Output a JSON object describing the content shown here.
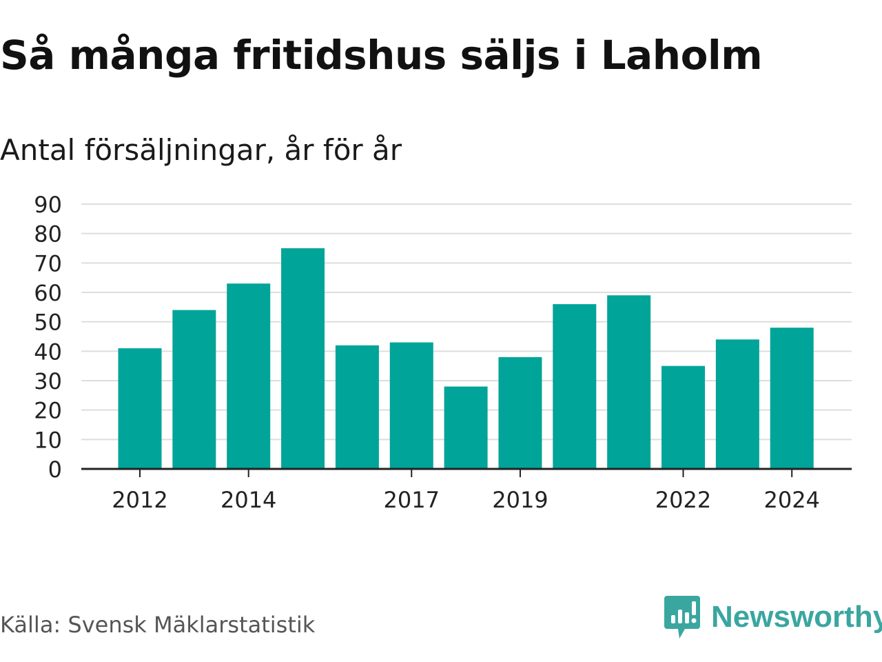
{
  "title": "Så många fritidshus säljs i Laholm",
  "subtitle": "Antal försäljningar, år för år",
  "source": "Källa: Svensk Mäklarstatistik",
  "logo": {
    "text": "Newsworthy",
    "icon": "newsworthy-logo-icon",
    "color": "#3aa6a0"
  },
  "colors": {
    "bar": "#00a499",
    "grid": "#dddddd",
    "axis": "#222222"
  },
  "chart_data": {
    "type": "bar",
    "categories": [
      "2012",
      "2013",
      "2014",
      "2015",
      "2016",
      "2017",
      "2018",
      "2019",
      "2020",
      "2021",
      "2022",
      "2023",
      "2024"
    ],
    "values": [
      41,
      54,
      63,
      75,
      42,
      43,
      28,
      38,
      56,
      59,
      35,
      44,
      48
    ],
    "x_tick_labels": [
      "2012",
      "2014",
      "2017",
      "2019",
      "2022",
      "2024"
    ],
    "y_ticks": [
      0,
      10,
      20,
      30,
      40,
      50,
      60,
      70,
      80,
      90
    ],
    "ylim": [
      0,
      90
    ],
    "xlabel": "",
    "ylabel": "",
    "grid": true
  }
}
